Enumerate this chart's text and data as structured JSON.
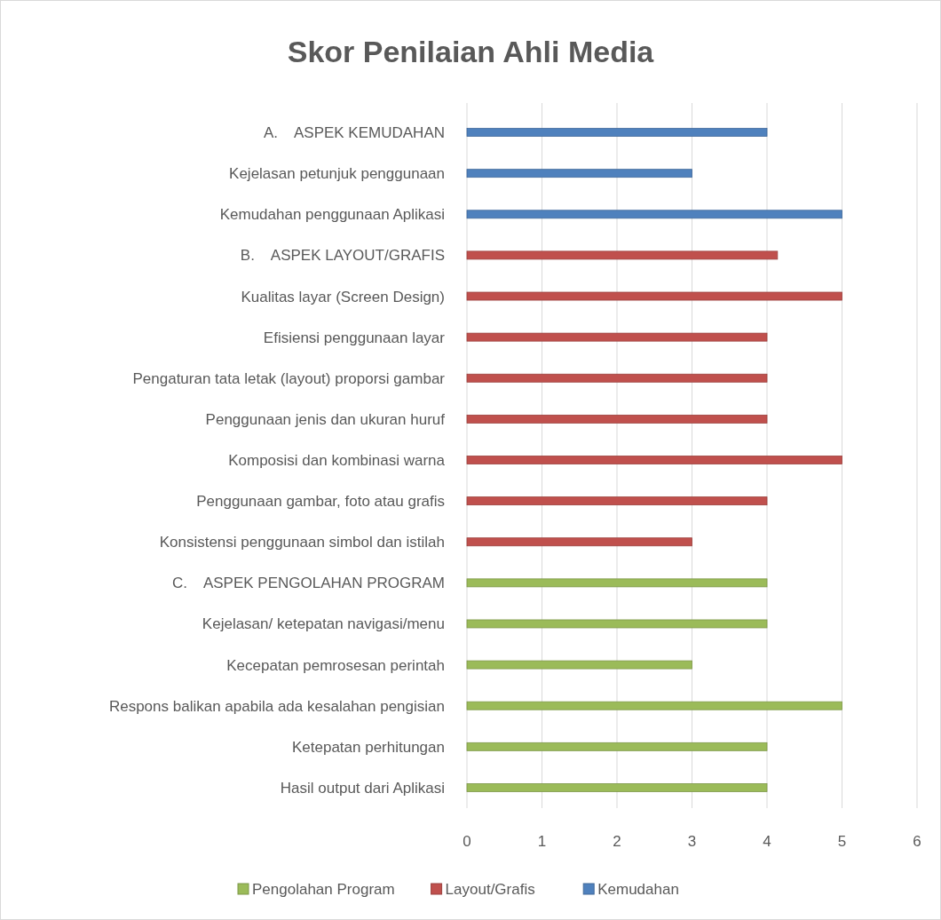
{
  "chart_data": {
    "type": "bar",
    "orientation": "horizontal",
    "title": "Skor Penilaian Ahli Media",
    "categories": [
      "A.    ASPEK KEMUDAHAN",
      "Kejelasan petunjuk penggunaan",
      "Kemudahan penggunaan Aplikasi",
      "B.    ASPEK LAYOUT/GRAFIS",
      "Kualitas layar (Screen Design)",
      "Efisiensi penggunaan layar",
      "Pengaturan tata letak (layout) proporsi gambar",
      "Penggunaan jenis dan ukuran huruf",
      "Komposisi dan kombinasi warna",
      "Penggunaan gambar, foto atau grafis",
      "Konsistensi penggunaan simbol dan istilah",
      "C.    ASPEK PENGOLAHAN PROGRAM",
      "Kejelasan/ ketepatan navigasi/menu",
      "Kecepatan pemrosesan perintah",
      "Respons balikan apabila ada kesalahan pengisian",
      "Ketepatan perhitungan",
      "Hasil output dari Aplikasi"
    ],
    "series": [
      {
        "name": "Pengolahan Program",
        "color": "#9bbb59",
        "values": [
          null,
          null,
          null,
          null,
          null,
          null,
          null,
          null,
          null,
          null,
          null,
          4,
          4,
          3,
          5,
          4,
          4
        ]
      },
      {
        "name": "Layout/Grafis",
        "color": "#c0504d",
        "values": [
          null,
          null,
          null,
          4.14,
          5,
          4,
          4,
          4,
          5,
          4,
          3,
          null,
          null,
          null,
          null,
          null,
          null
        ]
      },
      {
        "name": "Kemudahan",
        "color": "#4f81bd",
        "values": [
          4,
          3,
          5,
          null,
          null,
          null,
          null,
          null,
          null,
          null,
          null,
          null,
          null,
          null,
          null,
          null,
          null
        ]
      }
    ],
    "xlim": [
      0,
      6
    ],
    "xticks": [
      0,
      1,
      2,
      3,
      4,
      5,
      6
    ],
    "grid": "x",
    "legend": "bottom"
  }
}
